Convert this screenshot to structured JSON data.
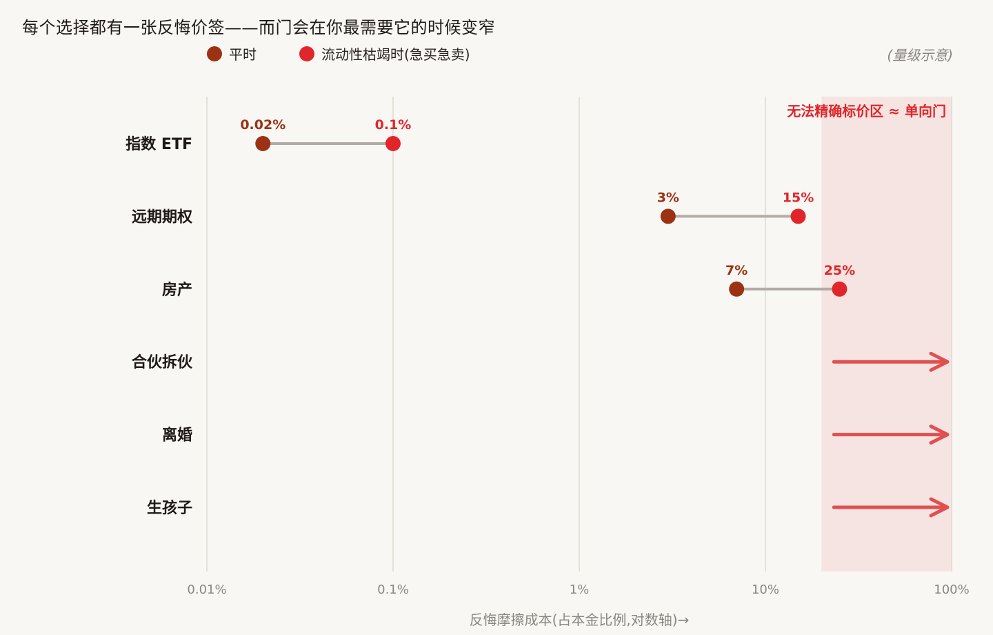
{
  "title": "每个选择都有一张反悔价签——而门会在你最需要它的时候变窄",
  "note": "(量级示意)",
  "legend": [
    {
      "label": "平时",
      "color": "#9b3214"
    },
    {
      "label": "流动性枯竭时(急买急卖)",
      "color": "#e0262b"
    }
  ],
  "chart_data": {
    "type": "dumbbell",
    "x_scale": "log",
    "xlim": [
      0.01,
      100
    ],
    "x_ticks": [
      {
        "value": 0.01,
        "label": "0.01%"
      },
      {
        "value": 0.1,
        "label": "0.1%"
      },
      {
        "value": 1,
        "label": "1%"
      },
      {
        "value": 10,
        "label": "10%"
      },
      {
        "value": 100,
        "label": "100%"
      }
    ],
    "xlabel": "反悔摩擦成本(占本金比例,对数轴)→",
    "shaded_zone": {
      "from": 20,
      "to": 100,
      "label": "无法精确标价区 ≈ 单向门"
    },
    "rows": [
      {
        "category": "指数 ETF",
        "normal": 0.02,
        "normal_label": "0.02%",
        "stress": 0.1,
        "stress_label": "0.1%"
      },
      {
        "category": "远期期权",
        "normal": 3,
        "normal_label": "3%",
        "stress": 15,
        "stress_label": "15%"
      },
      {
        "category": "房产",
        "normal": 7,
        "normal_label": "7%",
        "stress": 25,
        "stress_label": "25%"
      },
      {
        "category": "合伙拆伙",
        "arrow": true
      },
      {
        "category": "离婚",
        "arrow": true
      },
      {
        "category": "生孩子",
        "arrow": true
      }
    ],
    "colors": {
      "normal": "#9b3214",
      "stress": "#e0262b",
      "arrow": "#e05050",
      "zone": "#f6e4e2",
      "connector": "#b3aca6",
      "grid": "#dddad0"
    }
  }
}
